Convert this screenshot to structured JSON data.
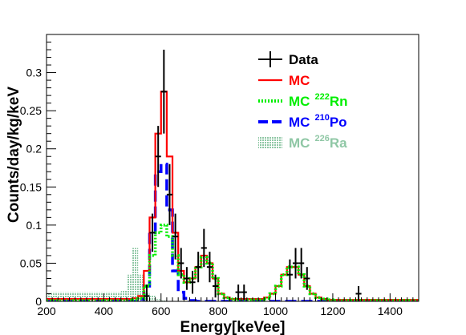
{
  "chart_data": {
    "type": "line",
    "title": "",
    "xlabel": "Energy[keVee]",
    "ylabel": "Counts/day/kg/keV",
    "xlim": [
      200,
      1500
    ],
    "ylim": [
      0,
      0.35
    ],
    "x_ticks": [
      "200",
      "400",
      "600",
      "800",
      "1000",
      "1200",
      "1400"
    ],
    "y_ticks": [
      "0",
      "0.05",
      "0.1",
      "0.15",
      "0.2",
      "0.25",
      "0.3"
    ],
    "legend_position": "top-right",
    "legend": [
      {
        "key": "data",
        "label": "Data",
        "color": "#000000"
      },
      {
        "key": "mc",
        "label": "MC",
        "color": "#ff0000"
      },
      {
        "key": "mc_rn222",
        "label": "MC",
        "sup": "222",
        "element": "Rn",
        "color": "#00ee00"
      },
      {
        "key": "mc_po210",
        "label": "MC",
        "sup": "210",
        "element": "Po",
        "color": "#0000ff"
      },
      {
        "key": "mc_ra226",
        "label": "MC",
        "sup": "226",
        "element": "Ra",
        "color": "#8fc7a5"
      }
    ],
    "bin_edges": [
      200,
      220,
      240,
      260,
      280,
      300,
      320,
      340,
      360,
      380,
      400,
      420,
      440,
      460,
      480,
      500,
      520,
      540,
      560,
      580,
      600,
      620,
      640,
      660,
      680,
      700,
      720,
      740,
      760,
      780,
      800,
      820,
      840,
      860,
      880,
      900,
      920,
      940,
      960,
      980,
      1000,
      1020,
      1040,
      1060,
      1080,
      1100,
      1120,
      1140,
      1160,
      1180,
      1200,
      1220,
      1240,
      1260,
      1280,
      1300,
      1320,
      1340,
      1360,
      1380,
      1400,
      1420,
      1440,
      1460,
      1480,
      1500
    ],
    "series": [
      {
        "name": "MC",
        "key": "mc",
        "style": "step",
        "color": "#ff0000",
        "values": [
          0.003,
          0.003,
          0.003,
          0.003,
          0.003,
          0.003,
          0.003,
          0.003,
          0.003,
          0.003,
          0.003,
          0.003,
          0.003,
          0.003,
          0.003,
          0.004,
          0.007,
          0.04,
          0.11,
          0.22,
          0.275,
          0.19,
          0.09,
          0.04,
          0.025,
          0.03,
          0.045,
          0.06,
          0.05,
          0.03,
          0.01,
          0.005,
          0.003,
          0.003,
          0.003,
          0.003,
          0.003,
          0.003,
          0.005,
          0.01,
          0.02,
          0.035,
          0.045,
          0.045,
          0.035,
          0.02,
          0.01,
          0.005,
          0.003,
          0.002,
          0.002,
          0.002,
          0.002,
          0.002,
          0.002,
          0.002,
          0.002,
          0.002,
          0.002,
          0.002,
          0.002,
          0.002,
          0.002,
          0.002,
          0.002
        ]
      },
      {
        "name": "MC 222Rn",
        "key": "mc_rn222",
        "style": "step-dotted",
        "color": "#00ee00",
        "values": [
          0.001,
          0.001,
          0.001,
          0.001,
          0.001,
          0.001,
          0.001,
          0.001,
          0.001,
          0.001,
          0.001,
          0.001,
          0.001,
          0.001,
          0.001,
          0.002,
          0.004,
          0.02,
          0.06,
          0.09,
          0.1,
          0.085,
          0.06,
          0.035,
          0.025,
          0.03,
          0.045,
          0.058,
          0.05,
          0.03,
          0.01,
          0.005,
          0.003,
          0.002,
          0.002,
          0.002,
          0.002,
          0.002,
          0.004,
          0.01,
          0.02,
          0.035,
          0.045,
          0.045,
          0.035,
          0.02,
          0.01,
          0.005,
          0.003,
          0.002,
          0.001,
          0.001,
          0.001,
          0.001,
          0.001,
          0.001,
          0.001,
          0.001,
          0.001,
          0.001,
          0.001,
          0.001,
          0.001,
          0.001,
          0.001
        ]
      },
      {
        "name": "MC 210Po",
        "key": "mc_po210",
        "style": "step-dashed",
        "color": "#0000ff",
        "values": [
          0,
          0,
          0,
          0,
          0,
          0,
          0,
          0,
          0,
          0,
          0,
          0,
          0,
          0,
          0,
          0,
          0.003,
          0.02,
          0.09,
          0.17,
          0.18,
          0.12,
          0.04,
          0.012,
          0.004,
          0.001,
          0,
          0,
          0,
          0,
          0,
          0,
          0,
          0,
          0,
          0,
          0,
          0,
          0,
          0,
          0,
          0,
          0,
          0,
          0,
          0,
          0,
          0,
          0,
          0,
          0,
          0,
          0,
          0,
          0,
          0,
          0,
          0,
          0,
          0,
          0,
          0,
          0,
          0,
          0
        ]
      },
      {
        "name": "MC 226Ra",
        "key": "mc_ra226",
        "style": "filled-hatch",
        "color": "#8fc7a5",
        "values": [
          0.012,
          0.012,
          0.012,
          0.012,
          0.012,
          0.012,
          0.012,
          0.012,
          0.012,
          0.012,
          0.012,
          0.012,
          0.012,
          0.014,
          0.035,
          0.07,
          0.035,
          0.012,
          0.008,
          0.003,
          0.001,
          0,
          0,
          0,
          0,
          0,
          0,
          0,
          0,
          0,
          0,
          0,
          0,
          0,
          0,
          0,
          0,
          0,
          0,
          0,
          0,
          0,
          0,
          0,
          0,
          0,
          0,
          0,
          0,
          0,
          0,
          0,
          0,
          0,
          0,
          0,
          0,
          0,
          0,
          0,
          0,
          0,
          0,
          0,
          0,
          0
        ]
      },
      {
        "name": "Data",
        "key": "data",
        "style": "points-errorbars",
        "color": "#000000",
        "x_halfwidth": 10,
        "points": [
          {
            "x": 550,
            "y": 0.007,
            "err": 0.015
          },
          {
            "x": 570,
            "y": 0.09,
            "err": 0.025
          },
          {
            "x": 590,
            "y": 0.19,
            "err": 0.04
          },
          {
            "x": 610,
            "y": 0.275,
            "err": 0.055
          },
          {
            "x": 630,
            "y": 0.14,
            "err": 0.04
          },
          {
            "x": 650,
            "y": 0.085,
            "err": 0.03
          },
          {
            "x": 670,
            "y": 0.05,
            "err": 0.02
          },
          {
            "x": 690,
            "y": 0.03,
            "err": 0.015
          },
          {
            "x": 710,
            "y": 0.025,
            "err": 0.015
          },
          {
            "x": 730,
            "y": 0.045,
            "err": 0.02
          },
          {
            "x": 750,
            "y": 0.07,
            "err": 0.025
          },
          {
            "x": 770,
            "y": 0.045,
            "err": 0.02
          },
          {
            "x": 790,
            "y": 0.02,
            "err": 0.015
          },
          {
            "x": 870,
            "y": 0.012,
            "err": 0.01
          },
          {
            "x": 890,
            "y": 0.012,
            "err": 0.01
          },
          {
            "x": 1050,
            "y": 0.035,
            "err": 0.02
          },
          {
            "x": 1070,
            "y": 0.05,
            "err": 0.02
          },
          {
            "x": 1090,
            "y": 0.05,
            "err": 0.02
          },
          {
            "x": 1110,
            "y": 0.03,
            "err": 0.015
          },
          {
            "x": 1290,
            "y": 0.01,
            "err": 0.01
          }
        ]
      }
    ]
  }
}
